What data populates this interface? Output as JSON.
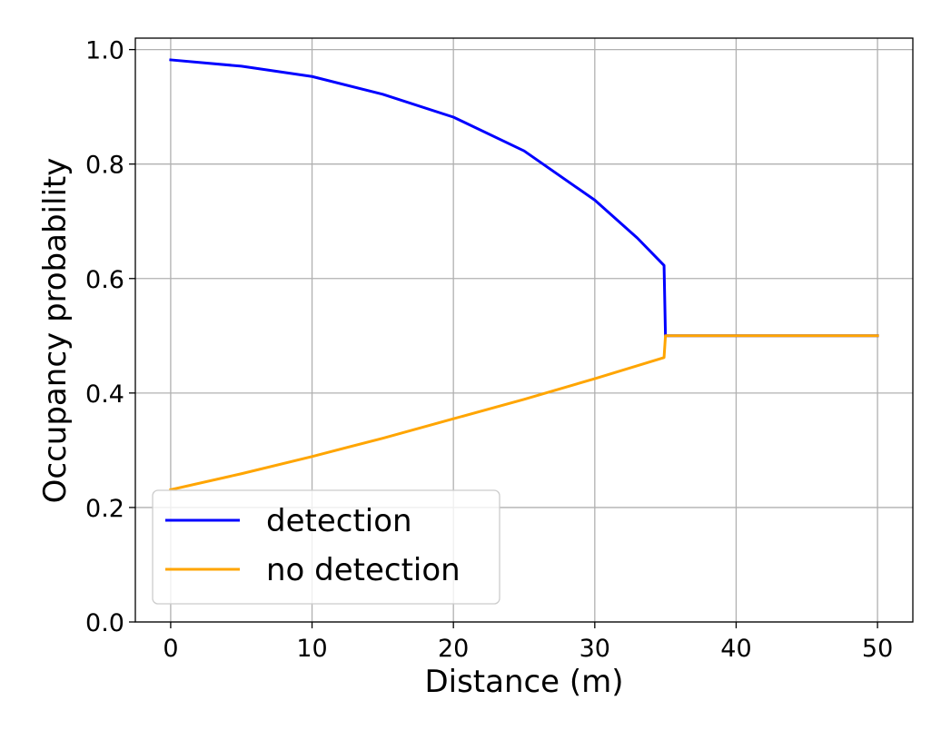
{
  "chart_data": {
    "type": "line",
    "xlabel": "Distance (m)",
    "ylabel": "Occupancy probability",
    "xlim": [
      -2.5,
      52.5
    ],
    "ylim": [
      0.0,
      1.02
    ],
    "xticks": [
      0,
      10,
      20,
      30,
      40,
      50
    ],
    "xtick_labels": [
      "0",
      "10",
      "20",
      "30",
      "40",
      "50"
    ],
    "yticks": [
      0.0,
      0.2,
      0.4,
      0.6,
      0.8,
      1.0
    ],
    "ytick_labels": [
      "0.0",
      "0.2",
      "0.4",
      "0.6",
      "0.8",
      "1.0"
    ],
    "grid": true,
    "legend_position": "lower-left",
    "series": [
      {
        "name": "detection",
        "color": "#0000ff",
        "x": [
          0,
          5,
          10,
          15,
          20,
          25,
          30,
          33,
          34.9,
          35.0,
          35.1,
          40,
          45,
          50
        ],
        "y": [
          0.982,
          0.971,
          0.953,
          0.922,
          0.882,
          0.823,
          0.737,
          0.671,
          0.623,
          0.5,
          0.5,
          0.5,
          0.5,
          0.5
        ]
      },
      {
        "name": "no detection",
        "color": "#ffa500",
        "x": [
          0,
          5,
          10,
          15,
          20,
          25,
          30,
          34.9,
          35.0,
          35.1,
          40,
          45,
          50
        ],
        "y": [
          0.231,
          0.259,
          0.289,
          0.321,
          0.355,
          0.389,
          0.425,
          0.462,
          0.5,
          0.5,
          0.5,
          0.5,
          0.5
        ]
      }
    ]
  }
}
